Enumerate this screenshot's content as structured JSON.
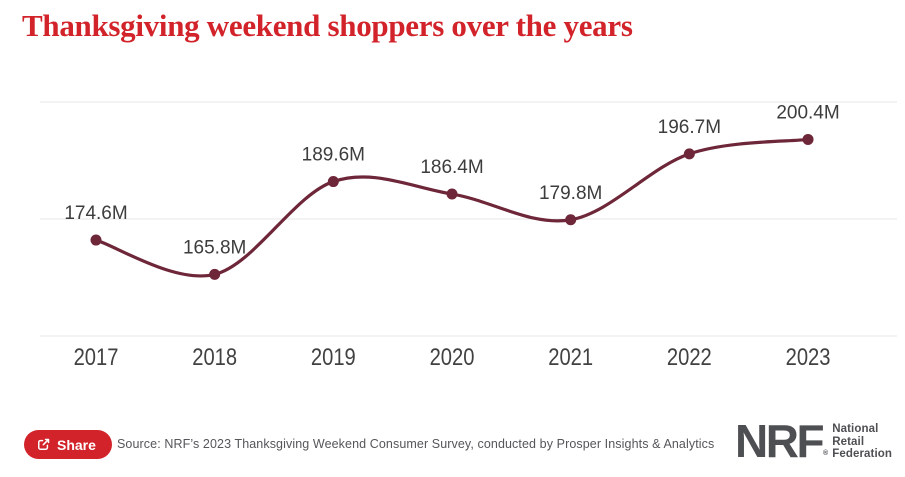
{
  "page": {
    "title": "Thanksgiving weekend shoppers over the years"
  },
  "chart_data": {
    "type": "line",
    "title": "Thanksgiving weekend shoppers over the years",
    "categories": [
      "2017",
      "2018",
      "2019",
      "2020",
      "2021",
      "2022",
      "2023"
    ],
    "values": [
      174.6,
      165.8,
      189.6,
      186.4,
      179.8,
      196.7,
      200.4
    ],
    "point_labels": [
      "174.6M",
      "165.8M",
      "189.6M",
      "186.4M",
      "179.8M",
      "196.7M",
      "200.4M"
    ],
    "xlabel": "",
    "ylabel": "",
    "ylim": [
      150,
      210
    ],
    "gridline_values": [
      150,
      180,
      210
    ],
    "grid": "horizontal-only",
    "legend": "none",
    "line_color": "#6e2639",
    "point_color": "#6e2639",
    "label_color": "#3d3d3d"
  },
  "footer": {
    "share_label": "Share",
    "source": "Source: NRF’s 2023 Thanksgiving Weekend Consumer Survey, conducted by Prosper Insights & Analytics",
    "logo": {
      "abbr": "NRF",
      "registered": "®",
      "lines": [
        "National",
        "Retail",
        "Federation"
      ]
    }
  },
  "colors": {
    "title_red": "#d2232a",
    "share_button_red": "#d2232a",
    "line_maroon": "#6e2639",
    "gridline_gray": "#e7e7e7",
    "logo_gray": "#4e4f53"
  }
}
